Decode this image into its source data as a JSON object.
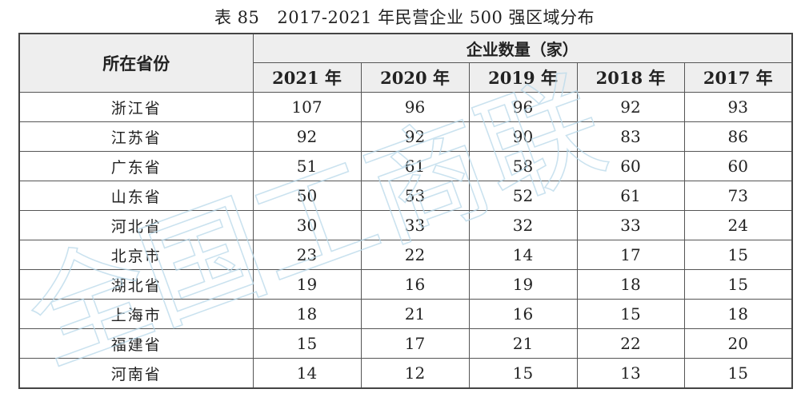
{
  "title": {
    "label": "表 85",
    "text": "2017-2021 年民营企业 500 强区域分布"
  },
  "watermark": "全国工商联",
  "chart_data": {
    "type": "table",
    "title": "表 85 2017-2021 年民营企业 500 强区域分布",
    "row_header": "所在省份",
    "group_header": "企业数量（家）",
    "columns": [
      "2021 年",
      "2020 年",
      "2019 年",
      "2018 年",
      "2017 年"
    ],
    "rows": [
      {
        "province": "浙江省",
        "values": [
          107,
          96,
          96,
          92,
          93
        ]
      },
      {
        "province": "江苏省",
        "values": [
          92,
          92,
          90,
          83,
          86
        ]
      },
      {
        "province": "广东省",
        "values": [
          51,
          61,
          58,
          60,
          60
        ]
      },
      {
        "province": "山东省",
        "values": [
          50,
          53,
          52,
          61,
          73
        ]
      },
      {
        "province": "河北省",
        "values": [
          30,
          33,
          32,
          33,
          24
        ]
      },
      {
        "province": "北京市",
        "values": [
          23,
          22,
          14,
          17,
          15
        ]
      },
      {
        "province": "湖北省",
        "values": [
          19,
          16,
          19,
          18,
          15
        ]
      },
      {
        "province": "上海市",
        "values": [
          18,
          21,
          16,
          15,
          18
        ]
      },
      {
        "province": "福建省",
        "values": [
          15,
          17,
          21,
          22,
          20
        ]
      },
      {
        "province": "河南省",
        "values": [
          14,
          12,
          15,
          13,
          15
        ]
      }
    ]
  }
}
